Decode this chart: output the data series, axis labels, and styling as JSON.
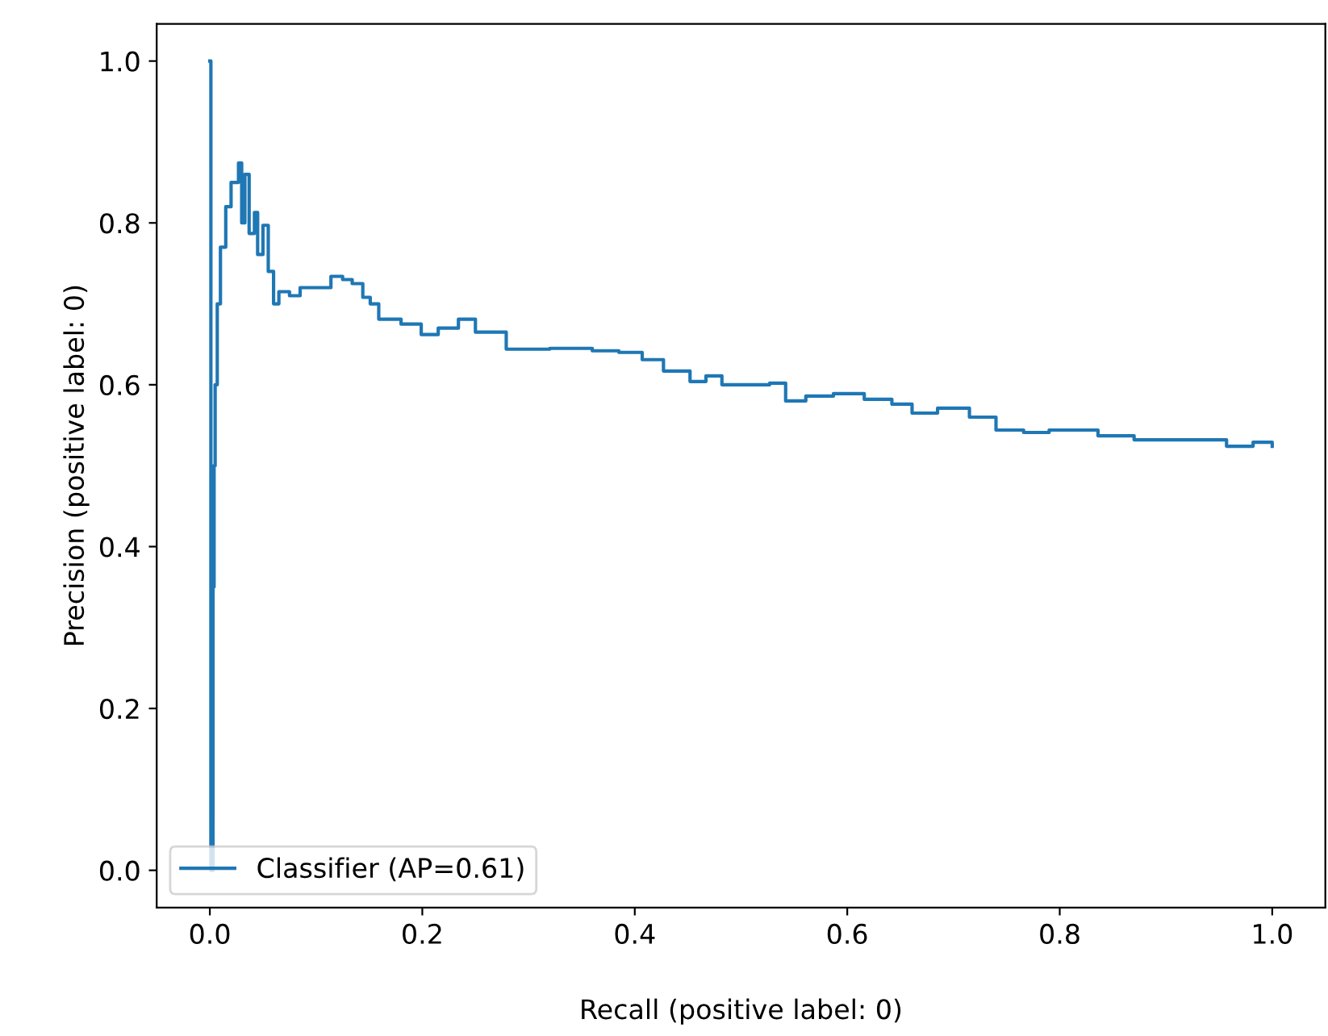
{
  "chart_data": {
    "type": "step",
    "xlabel": "Recall (positive label: 0)",
    "ylabel": "Precision (positive label: 0)",
    "xlim": [
      -0.05,
      1.05
    ],
    "ylim": [
      -0.046,
      1.046
    ],
    "xticks": [
      {
        "value": 0,
        "label": "0.0"
      },
      0.2,
      0.4,
      0.6,
      0.8,
      {
        "value": 1,
        "label": "1.0"
      }
    ],
    "yticks": [
      {
        "value": 0,
        "label": "0.0"
      },
      0.2,
      0.4,
      0.6,
      0.8,
      {
        "value": 1,
        "label": "1.0"
      }
    ],
    "grid": false,
    "legend": "bottom left",
    "marker": "none",
    "line_style": "solid",
    "series": [
      {
        "name": "Classifier (AP=0.61)",
        "color": "#1f77b4",
        "x": [
          0.0,
          0.001,
          0.003,
          0.004,
          0.005,
          0.007,
          0.01,
          0.015,
          0.02,
          0.027,
          0.03,
          0.033,
          0.037,
          0.042,
          0.045,
          0.05,
          0.055,
          0.06,
          0.065,
          0.075,
          0.085,
          0.1,
          0.114,
          0.125,
          0.134,
          0.144,
          0.151,
          0.159,
          0.18,
          0.199,
          0.215,
          0.234,
          0.25,
          0.279,
          0.32,
          0.36,
          0.385,
          0.407,
          0.427,
          0.452,
          0.467,
          0.482,
          0.507,
          0.527,
          0.542,
          0.561,
          0.587,
          0.616,
          0.642,
          0.661,
          0.685,
          0.715,
          0.74,
          0.766,
          0.79,
          0.836,
          0.87,
          0.934,
          0.957,
          0.982,
          1.0
        ],
        "values": [
          1.0,
          0.0,
          0.35,
          0.5,
          0.6,
          0.7,
          0.77,
          0.82,
          0.85,
          0.874,
          0.8,
          0.86,
          0.787,
          0.813,
          0.761,
          0.797,
          0.74,
          0.7,
          0.715,
          0.71,
          0.72,
          0.72,
          0.734,
          0.73,
          0.725,
          0.708,
          0.7,
          0.681,
          0.675,
          0.662,
          0.67,
          0.681,
          0.665,
          0.644,
          0.645,
          0.642,
          0.64,
          0.631,
          0.617,
          0.604,
          0.611,
          0.6,
          0.6,
          0.602,
          0.58,
          0.586,
          0.589,
          0.582,
          0.576,
          0.565,
          0.571,
          0.56,
          0.544,
          0.541,
          0.544,
          0.537,
          0.532,
          0.532,
          0.524,
          0.529,
          0.524
        ]
      }
    ]
  }
}
